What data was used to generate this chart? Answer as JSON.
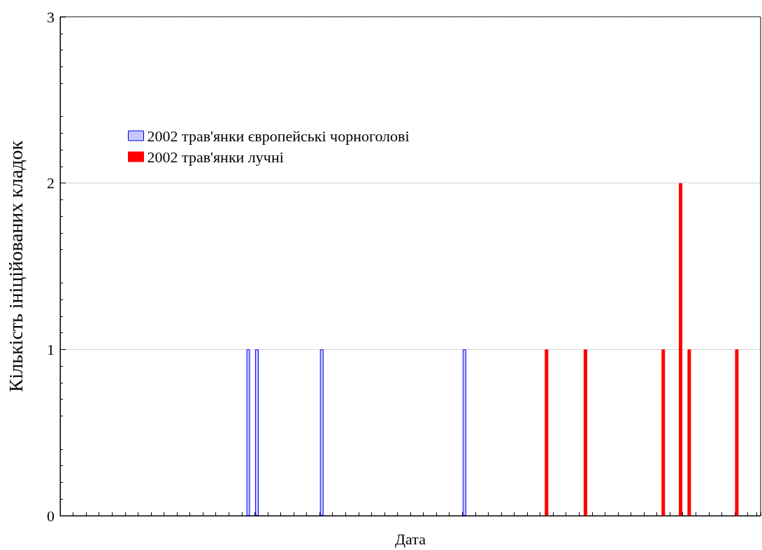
{
  "chart_data": {
    "type": "bar",
    "xlabel": "Дата",
    "ylabel": "Кількість ініційованих кладок",
    "categories": [
      null,
      null,
      null,
      null,
      null,
      null,
      null,
      null,
      null,
      null,
      null,
      null,
      null,
      null,
      null,
      null,
      null,
      null,
      null,
      null,
      null,
      null,
      null,
      null,
      null,
      null,
      null,
      null,
      null,
      null,
      null,
      null,
      null,
      null,
      null,
      null,
      null,
      null,
      null,
      null,
      null,
      null,
      null,
      null,
      null,
      null,
      null,
      null,
      null,
      null,
      null,
      null,
      null,
      null,
      null,
      null,
      null,
      null,
      null,
      null,
      null,
      null,
      null,
      null,
      null,
      null,
      null,
      null,
      null,
      null,
      null,
      null,
      null,
      null,
      null,
      null,
      null,
      null,
      null,
      null,
      null,
      null,
      null,
      null,
      null,
      null,
      null,
      null,
      null,
      null,
      null,
      null,
      null,
      null,
      null,
      null,
      null,
      null,
      null,
      null,
      null,
      null,
      null,
      null,
      null,
      null,
      null,
      null,
      null,
      null,
      null,
      null,
      null,
      null,
      null,
      null,
      null,
      null,
      null,
      null,
      null,
      null,
      null,
      null,
      null,
      null,
      null,
      null,
      null,
      null,
      null,
      null,
      null,
      null,
      null,
      null,
      null,
      null,
      null,
      null,
      null,
      null,
      null,
      null,
      null,
      null,
      null,
      null,
      null,
      null,
      null,
      null,
      null,
      null,
      null,
      null,
      null,
      null,
      null,
      null,
      null,
      null
    ],
    "series": [
      {
        "name": "2002 трав'янки європейські чорноголові",
        "color": "#c8c8ff",
        "values": [
          0,
          0,
          0,
          0,
          0,
          0,
          0,
          0,
          0,
          0,
          0,
          0,
          0,
          0,
          0,
          0,
          0,
          0,
          0,
          0,
          0,
          0,
          0,
          0,
          0,
          0,
          0,
          0,
          0,
          0,
          0,
          0,
          0,
          0,
          0,
          0,
          0,
          0,
          0,
          0,
          0,
          0,
          0,
          1,
          0,
          1,
          0,
          0,
          0,
          0,
          0,
          0,
          0,
          0,
          0,
          0,
          0,
          0,
          0,
          0,
          1,
          0,
          0,
          0,
          0,
          0,
          0,
          0,
          0,
          0,
          0,
          0,
          0,
          0,
          0,
          0,
          0,
          0,
          0,
          0,
          0,
          0,
          0,
          0,
          0,
          0,
          0,
          0,
          0,
          0,
          0,
          0,
          0,
          1,
          0,
          0,
          0,
          0,
          0,
          0,
          0,
          0,
          0,
          0,
          0,
          0,
          0,
          0,
          0,
          0,
          0,
          0,
          0,
          0,
          0,
          0,
          0,
          0,
          0,
          0,
          0,
          0,
          0,
          0,
          0,
          0,
          0,
          0,
          0,
          0,
          0,
          0,
          0,
          0,
          0,
          0,
          0,
          0,
          0,
          0,
          0,
          0,
          0,
          0,
          0,
          0,
          0,
          0,
          0,
          0,
          0,
          0,
          0,
          0,
          0,
          0,
          0,
          0,
          0,
          0,
          0,
          0
        ]
      },
      {
        "name": "2002 трав'янки лучні",
        "color": "#ff0000",
        "values": [
          0,
          0,
          0,
          0,
          0,
          0,
          0,
          0,
          0,
          0,
          0,
          0,
          0,
          0,
          0,
          0,
          0,
          0,
          0,
          0,
          0,
          0,
          0,
          0,
          0,
          0,
          0,
          0,
          0,
          0,
          0,
          0,
          0,
          0,
          0,
          0,
          0,
          0,
          0,
          0,
          0,
          0,
          0,
          0,
          0,
          0,
          0,
          0,
          0,
          0,
          0,
          0,
          0,
          0,
          0,
          0,
          0,
          0,
          0,
          0,
          0,
          0,
          0,
          0,
          0,
          0,
          0,
          0,
          0,
          0,
          0,
          0,
          0,
          0,
          0,
          0,
          0,
          0,
          0,
          0,
          0,
          0,
          0,
          0,
          0,
          0,
          0,
          0,
          0,
          0,
          0,
          0,
          0,
          0,
          0,
          0,
          0,
          0,
          0,
          0,
          0,
          0,
          0,
          0,
          0,
          0,
          0,
          0,
          0,
          0,
          0,
          0,
          1,
          0,
          0,
          0,
          0,
          0,
          0,
          0,
          0,
          1,
          0,
          0,
          0,
          0,
          0,
          0,
          0,
          0,
          0,
          0,
          0,
          0,
          0,
          0,
          0,
          0,
          0,
          1,
          0,
          0,
          0,
          2,
          0,
          1,
          0,
          0,
          0,
          0,
          0,
          0,
          0,
          0,
          0,
          0,
          1,
          0,
          0,
          0,
          0,
          0
        ]
      }
    ],
    "ylim": [
      0,
      3
    ],
    "yticks": [
      0,
      1,
      2,
      3
    ],
    "grid": "y",
    "legend": "top left",
    "tick_labels": "y"
  }
}
